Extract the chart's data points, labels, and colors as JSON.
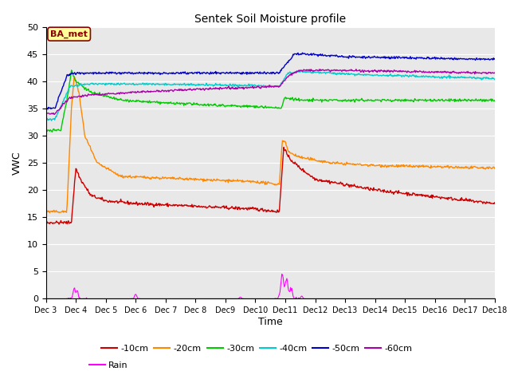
{
  "title": "Sentek Soil Moisture profile",
  "xlabel": "Time",
  "ylabel": "VWC",
  "ylim": [
    0,
    50
  ],
  "annotation": "BA_met",
  "legend_entries": [
    "-10cm",
    "-20cm",
    "-30cm",
    "-40cm",
    "-50cm",
    "-60cm",
    "Rain"
  ],
  "colors": {
    "-10cm": "#cc0000",
    "-20cm": "#ff8800",
    "-30cm": "#00cc00",
    "-40cm": "#00cccc",
    "-50cm": "#0000cc",
    "-60cm": "#aa00aa",
    "Rain": "#ff00ff"
  },
  "background_color": "#e8e8e8",
  "tick_labels": [
    "Dec 3",
    "Dec 4",
    "Dec 5",
    "Dec 6",
    "Dec 7",
    "Dec 8",
    "Dec 9",
    "Dec 10",
    "Dec 11",
    "Dec 12",
    "Dec 13",
    "Dec 14",
    "Dec 15",
    "Dec 16",
    "Dec 17",
    "Dec 18"
  ],
  "tick_labels_short": [
    "Dec 3",
    "Dec 4",
    "Dec 5",
    "Dec 6",
    "Dec 7",
    "Dec 8",
    "Dec 9",
    "Dec 10",
    "Dec 11",
    "Dec 12",
    "Dec 13",
    "Dec 14",
    "Dec 15",
    "Dec 16",
    "Dec 17",
    "Dec 18"
  ]
}
